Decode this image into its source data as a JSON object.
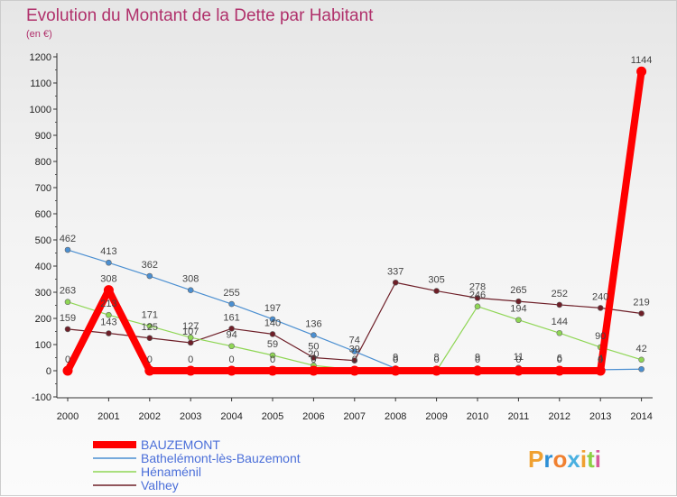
{
  "chart_data": {
    "type": "line",
    "title": "Evolution du Montant de la Dette par Habitant",
    "subtitle": "(en €)",
    "xlabel": "",
    "ylabel": "",
    "ylim": [
      -100,
      1200
    ],
    "yticks": [
      -100,
      0,
      100,
      200,
      300,
      400,
      500,
      600,
      700,
      800,
      900,
      1000,
      1100,
      1200
    ],
    "grid": false,
    "legend_position": "bottom-left",
    "x": [
      "2000",
      "2001",
      "2002",
      "2003",
      "2004",
      "2005",
      "2006",
      "2007",
      "2008",
      "2009",
      "2010",
      "2011",
      "2012",
      "2013",
      "2014"
    ],
    "series": [
      {
        "name": "BAUZEMONT",
        "color": "#ff0000",
        "values": [
          0,
          308,
          0,
          0,
          0,
          0,
          0,
          0,
          0,
          0,
          0,
          0,
          0,
          0,
          1144
        ],
        "labels": [
          "0",
          "308",
          "0",
          "0",
          "0",
          "0",
          "0",
          "0",
          "0",
          "0",
          "0",
          "0",
          "0",
          "0",
          "1144"
        ]
      },
      {
        "name": "Bathelémont-lès-Bauzemont",
        "color": "#4b8fd1",
        "values": [
          462,
          413,
          362,
          308,
          255,
          197,
          136,
          74,
          9,
          8,
          9,
          11,
          6,
          4,
          6
        ],
        "labels": [
          "462",
          "413",
          "362",
          "308",
          "255",
          "197",
          "136",
          "74",
          "9",
          "8",
          "9",
          "11",
          "6",
          "4",
          ""
        ]
      },
      {
        "name": "Hénaménil",
        "color": "#8fd655",
        "values": [
          263,
          213,
          171,
          127,
          94,
          59,
          20,
          4,
          0,
          0,
          246,
          194,
          144,
          90,
          42
        ],
        "labels": [
          "263",
          "213",
          "171",
          "127",
          "94",
          "59",
          "20",
          "",
          "0",
          "",
          "246",
          "194",
          "144",
          "90",
          "42"
        ]
      },
      {
        "name": "Valhey",
        "color": "#6e1f28",
        "values": [
          159,
          143,
          125,
          107,
          161,
          140,
          50,
          39,
          337,
          305,
          278,
          265,
          252,
          240,
          219
        ],
        "labels": [
          "159",
          "143",
          "125",
          "107",
          "161",
          "140",
          "50",
          "39",
          "337",
          "305",
          "278",
          "265",
          "252",
          "240",
          "219"
        ]
      }
    ]
  },
  "logo": {
    "text": "Proxiti",
    "colors": [
      "#f0a030",
      "#2d8fd6",
      "#f08030",
      "#4ab0e0",
      "#f0a030",
      "#8ccf45",
      "#d65c9c"
    ]
  }
}
